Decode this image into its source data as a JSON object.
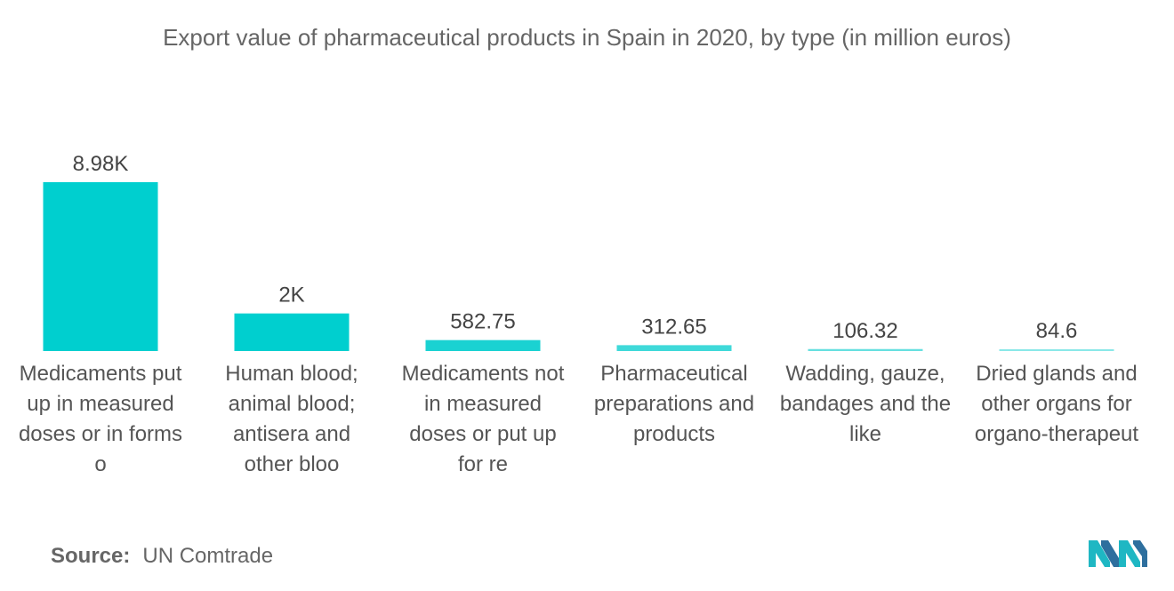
{
  "chart_data": {
    "type": "bar",
    "title": "Export value of pharmaceutical products in Spain in 2020, by type (in million euros)",
    "categories": [
      "Medicaments put up in measured doses or in forms o",
      "Human blood; animal blood; antisera and other bloo",
      "Medicaments not in measured doses or put up for re",
      "Pharmaceutical preparations and products",
      "Wadding, gauze, bandages and the like",
      "Dried glands and other organs for organo-therapeut"
    ],
    "category_lines": [
      [
        "Medicaments put",
        "up in measured",
        "doses or in forms",
        "o"
      ],
      [
        "Human blood;",
        "animal blood;",
        "antisera and",
        "other bloo"
      ],
      [
        "Medicaments not",
        "in measured",
        "doses or put up",
        "for re"
      ],
      [
        "Pharmaceutical",
        "preparations and",
        "products"
      ],
      [
        "Wadding, gauze,",
        "bandages and the",
        "like"
      ],
      [
        "Dried glands and",
        "other organs for",
        "organo-therapeut"
      ]
    ],
    "values": [
      8980,
      2000,
      582.75,
      312.65,
      106.32,
      84.6
    ],
    "data_labels": [
      "8.98K",
      "2K",
      "582.75",
      "312.65",
      "106.32",
      "84.6"
    ],
    "xlabel": "",
    "ylabel": "",
    "ylim": [
      0,
      8980
    ],
    "grid": false,
    "legend": "none",
    "colors": [
      "#00cfcf",
      "#00cfcf",
      "#1ad2d2",
      "#3fd9d9",
      "#66e0e0",
      "#8ae8e8"
    ]
  },
  "source": {
    "key": "Source:",
    "value": "UN Comtrade"
  },
  "logo": {
    "icon": "mordor-intelligence-logo-icon",
    "colors": [
      "#1fb7c3",
      "#2e6f9e"
    ]
  }
}
